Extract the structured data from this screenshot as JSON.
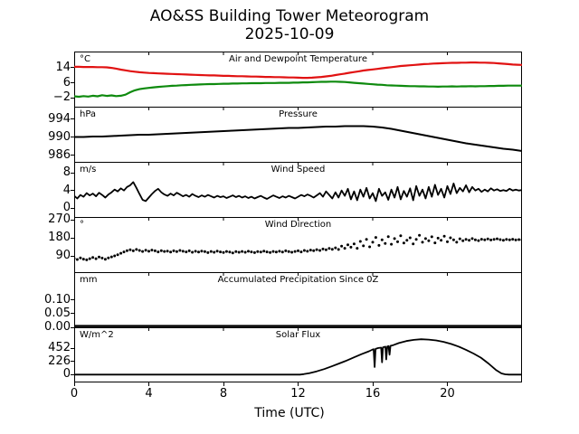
{
  "page": {
    "title": "AO&SS Building Tower Meteorogram",
    "date": "2025-10-09"
  },
  "chart_data": {
    "type": "line",
    "title": "AO&SS Building Tower Meteorogram",
    "subtitle": "2025-10-09",
    "xlabel": "Time (UTC)",
    "xlim": [
      0,
      24
    ],
    "xticks": [
      0,
      4,
      8,
      12,
      16,
      20
    ],
    "xtick_labels": [
      "0",
      "4",
      "8",
      "12",
      "16",
      "20"
    ],
    "grid": false,
    "legend": "none",
    "panels": [
      {
        "name": "temperature-panel",
        "title": "Air and Dewpoint Temperature",
        "unit": "°C",
        "ylim": [
          -6.7,
          22.6
        ],
        "yticks": [
          14,
          6,
          -2
        ],
        "ytick_labels": [
          "14",
          "6",
          "−2"
        ],
        "series": [
          {
            "name": "air-temperature",
            "color": "#e11212",
            "line_width": 2.2,
            "style": "line",
            "x_start": 0,
            "x_step": 0.25,
            "y": [
              14.5,
              14.5,
              14.4,
              14.4,
              14.4,
              14.3,
              14.3,
              14.2,
              13.9,
              13.5,
              13.0,
              12.6,
              12.2,
              11.9,
              11.6,
              11.4,
              11.2,
              11.1,
              11.0,
              10.9,
              10.8,
              10.7,
              10.6,
              10.5,
              10.4,
              10.3,
              10.2,
              10.1,
              10.0,
              9.9,
              9.9,
              9.8,
              9.7,
              9.7,
              9.6,
              9.5,
              9.5,
              9.4,
              9.3,
              9.3,
              9.2,
              9.1,
              9.1,
              9.0,
              9.0,
              8.9,
              8.8,
              8.8,
              8.7,
              8.6,
              8.6,
              8.7,
              8.9,
              9.1,
              9.4,
              9.7,
              10.1,
              10.5,
              10.9,
              11.3,
              11.7,
              12.1,
              12.5,
              12.8,
              13.1,
              13.4,
              13.7,
              14.0,
              14.3,
              14.6,
              14.9,
              15.1,
              15.3,
              15.5,
              15.7,
              15.9,
              16.0,
              16.2,
              16.3,
              16.4,
              16.5,
              16.6,
              16.6,
              16.7,
              16.7,
              16.8,
              16.8,
              16.7,
              16.7,
              16.6,
              16.5,
              16.3,
              16.1,
              15.9,
              15.7,
              15.6,
              15.5
            ]
          },
          {
            "name": "dewpoint-temperature",
            "color": "#0e8a0e",
            "line_width": 2.2,
            "style": "line",
            "x_start": 0,
            "x_step": 0.25,
            "y": [
              -1.2,
              -1.4,
              -1.1,
              -1.3,
              -0.9,
              -1.2,
              -0.6,
              -1.0,
              -0.7,
              -1.1,
              -0.9,
              -0.3,
              1.0,
              2.0,
              2.6,
              3.0,
              3.3,
              3.6,
              3.8,
              4.0,
              4.2,
              4.4,
              4.5,
              4.7,
              4.8,
              4.9,
              5.0,
              5.1,
              5.2,
              5.3,
              5.3,
              5.4,
              5.5,
              5.5,
              5.6,
              5.6,
              5.7,
              5.7,
              5.8,
              5.8,
              5.8,
              5.9,
              5.9,
              5.9,
              6.0,
              6.0,
              6.0,
              6.1,
              6.1,
              6.2,
              6.2,
              6.3,
              6.4,
              6.5,
              6.5,
              6.6,
              6.6,
              6.5,
              6.4,
              6.2,
              6.0,
              5.8,
              5.6,
              5.4,
              5.2,
              5.0,
              4.9,
              4.7,
              4.6,
              4.5,
              4.4,
              4.3,
              4.2,
              4.2,
              4.1,
              4.1,
              4.0,
              4.0,
              3.9,
              4.0,
              4.0,
              4.1,
              4.0,
              4.1,
              4.1,
              4.2,
              4.1,
              4.2,
              4.2,
              4.3,
              4.3,
              4.4,
              4.4,
              4.5,
              4.5,
              4.5,
              4.5
            ]
          }
        ]
      },
      {
        "name": "pressure-panel",
        "title": "Pressure",
        "unit": "hPa",
        "ylim": [
          984.5,
          996.7
        ],
        "yticks": [
          994,
          990,
          986
        ],
        "ytick_labels": [
          "994",
          "990",
          "986"
        ],
        "series": [
          {
            "name": "pressure",
            "color": "#000000",
            "line_width": 2.0,
            "style": "line",
            "x_start": 0,
            "x_step": 0.5,
            "y": [
              990.0,
              990.0,
              990.1,
              990.1,
              990.2,
              990.3,
              990.4,
              990.5,
              990.5,
              990.6,
              990.7,
              990.8,
              990.9,
              991.0,
              991.1,
              991.2,
              991.3,
              991.4,
              991.5,
              991.6,
              991.7,
              991.8,
              991.9,
              992.0,
              992.0,
              992.1,
              992.2,
              992.3,
              992.3,
              992.4,
              992.4,
              992.4,
              992.3,
              992.1,
              991.8,
              991.4,
              991.0,
              990.6,
              990.2,
              989.8,
              989.4,
              989.0,
              988.6,
              988.3,
              988.0,
              987.7,
              987.4,
              987.2,
              986.9
            ]
          }
        ]
      },
      {
        "name": "wind-speed-panel",
        "title": "Wind Speed",
        "unit": "m/s",
        "ylim": [
          -2.0,
          10.5
        ],
        "yticks": [
          8,
          4,
          0
        ],
        "ytick_labels": [
          "8",
          "4",
          "0"
        ],
        "series": [
          {
            "name": "wind-speed",
            "color": "#000000",
            "line_width": 1.8,
            "style": "line",
            "x_start": 0,
            "x_step": 0.1666667,
            "y": [
              2.8,
              2.2,
              3.0,
              2.6,
              3.4,
              2.9,
              3.3,
              2.7,
              3.5,
              3.0,
              2.4,
              3.1,
              3.6,
              4.2,
              3.8,
              4.5,
              4.0,
              4.8,
              5.2,
              5.9,
              4.6,
              3.2,
              1.9,
              1.6,
              2.4,
              3.2,
              3.9,
              4.4,
              3.6,
              3.1,
              2.8,
              3.3,
              2.9,
              3.5,
              3.1,
              2.7,
              3.0,
              2.6,
              3.2,
              2.8,
              2.5,
              2.9,
              2.6,
              3.0,
              2.7,
              2.4,
              2.8,
              2.5,
              2.7,
              2.3,
              2.6,
              2.9,
              2.5,
              2.8,
              2.4,
              2.7,
              2.3,
              2.6,
              2.2,
              2.5,
              2.8,
              2.4,
              2.1,
              2.5,
              2.9,
              2.6,
              2.3,
              2.7,
              2.4,
              2.8,
              2.5,
              2.2,
              2.6,
              3.0,
              2.7,
              3.1,
              2.8,
              2.4,
              2.9,
              3.4,
              2.6,
              3.8,
              3.0,
              2.2,
              3.6,
              2.4,
              4.0,
              2.8,
              4.4,
              2.0,
              3.8,
              1.8,
              4.2,
              2.6,
              4.6,
              2.2,
              3.4,
              1.6,
              4.4,
              2.8,
              3.6,
              1.9,
              4.2,
              2.4,
              4.8,
              2.0,
              3.9,
              2.6,
              4.5,
              1.8,
              5.0,
              2.8,
              4.2,
              2.2,
              4.8,
              2.6,
              5.3,
              3.0,
              4.4,
              2.4,
              5.0,
              3.2,
              5.6,
              3.4,
              4.6,
              3.8,
              5.2,
              3.6,
              4.8,
              4.0,
              4.4,
              3.7,
              4.2,
              3.8,
              4.5,
              4.0,
              4.3,
              3.9,
              4.1,
              3.9,
              4.4,
              4.0,
              4.2,
              4.0,
              4.1
            ]
          }
        ]
      },
      {
        "name": "wind-direction-panel",
        "title": "Wind Direction",
        "unit": "°",
        "ylim": [
          9,
          283.5
        ],
        "yticks": [
          270,
          180,
          90
        ],
        "ytick_labels": [
          "270",
          "180",
          "90"
        ],
        "series": [
          {
            "name": "wind-direction",
            "color": "#000000",
            "line_width": 1.5,
            "style": "dots",
            "x_start": 0,
            "x_step": 0.1666667,
            "y": [
              78,
              72,
              80,
              74,
              70,
              76,
              82,
              76,
              84,
              79,
              73,
              80,
              85,
              90,
              96,
              103,
              110,
              116,
              120,
              115,
              122,
              117,
              112,
              118,
              113,
              119,
              115,
              110,
              116,
              112,
              114,
              109,
              115,
              111,
              117,
              113,
              110,
              115,
              108,
              113,
              109,
              114,
              111,
              106,
              112,
              108,
              114,
              110,
              107,
              112,
              109,
              105,
              111,
              108,
              112,
              108,
              113,
              110,
              106,
              111,
              109,
              114,
              110,
              107,
              112,
              109,
              113,
              109,
              115,
              111,
              108,
              112,
              115,
              110,
              117,
              113,
              119,
              116,
              121,
              117,
              124,
              120,
              127,
              123,
              130,
              122,
              138,
              128,
              145,
              133,
              150,
              128,
              162,
              140,
              172,
              135,
              158,
              182,
              142,
              170,
              152,
              186,
              148,
              176,
              160,
              190,
              154,
              168,
              180,
              150,
              172,
              192,
              158,
              176,
              165,
              185,
              155,
              178,
              168,
              188,
              160,
              180,
              170,
              158,
              175,
              165,
              172,
              168,
              176,
              170,
              166,
              173,
              170,
              174,
              169,
              172,
              175,
              171,
              168,
              172,
              170,
              173,
              169,
              171,
              170
            ]
          }
        ]
      },
      {
        "name": "precipitation-panel",
        "title": "Accumulated Precipitation Since 0Z",
        "unit": "mm",
        "ylim": [
          0,
          0.2
        ],
        "yticks": [
          0.1,
          0.05,
          0.0
        ],
        "ytick_labels": [
          "0.10",
          "0.05",
          "0.00"
        ],
        "series": [
          {
            "name": "accumulated-precipitation",
            "color": "#000000",
            "line_width": 2.5,
            "style": "line",
            "x": [
              0,
              24
            ],
            "y": [
              0,
              0
            ]
          }
        ]
      },
      {
        "name": "solar-flux-panel",
        "title": "Solar Flux",
        "unit": "W/m^2",
        "ylim": [
          -135,
          810
        ],
        "yticks": [
          452,
          226,
          0
        ],
        "ytick_labels": [
          "452",
          "226",
          "0"
        ],
        "series": [
          {
            "name": "solar-flux",
            "color": "#000000",
            "line_width": 1.8,
            "style": "line",
            "x": [
              0,
              12.1,
              12.3,
              12.6,
              13.0,
              13.4,
              13.8,
              14.2,
              14.6,
              15.0,
              15.4,
              15.8,
              16.0,
              16.05,
              16.1,
              16.15,
              16.3,
              16.45,
              16.5,
              16.55,
              16.62,
              16.68,
              16.72,
              16.78,
              16.85,
              16.9,
              16.95,
              17.1,
              17.4,
              17.8,
              18.2,
              18.6,
              19.0,
              19.4,
              19.8,
              20.2,
              20.6,
              21.0,
              21.4,
              21.8,
              22.2,
              22.6,
              22.9,
              23.1,
              23.3,
              24.0
            ],
            "y": [
              0,
              0,
              8,
              25,
              55,
              95,
              140,
              190,
              240,
              295,
              350,
              400,
              430,
              435,
              130,
              440,
              455,
              462,
              210,
              468,
              472,
              478,
              260,
              482,
              487,
              340,
              492,
              505,
              540,
              575,
              595,
              605,
              600,
              585,
              560,
              525,
              480,
              425,
              360,
              290,
              190,
              80,
              20,
              5,
              0,
              0
            ]
          }
        ]
      }
    ]
  }
}
